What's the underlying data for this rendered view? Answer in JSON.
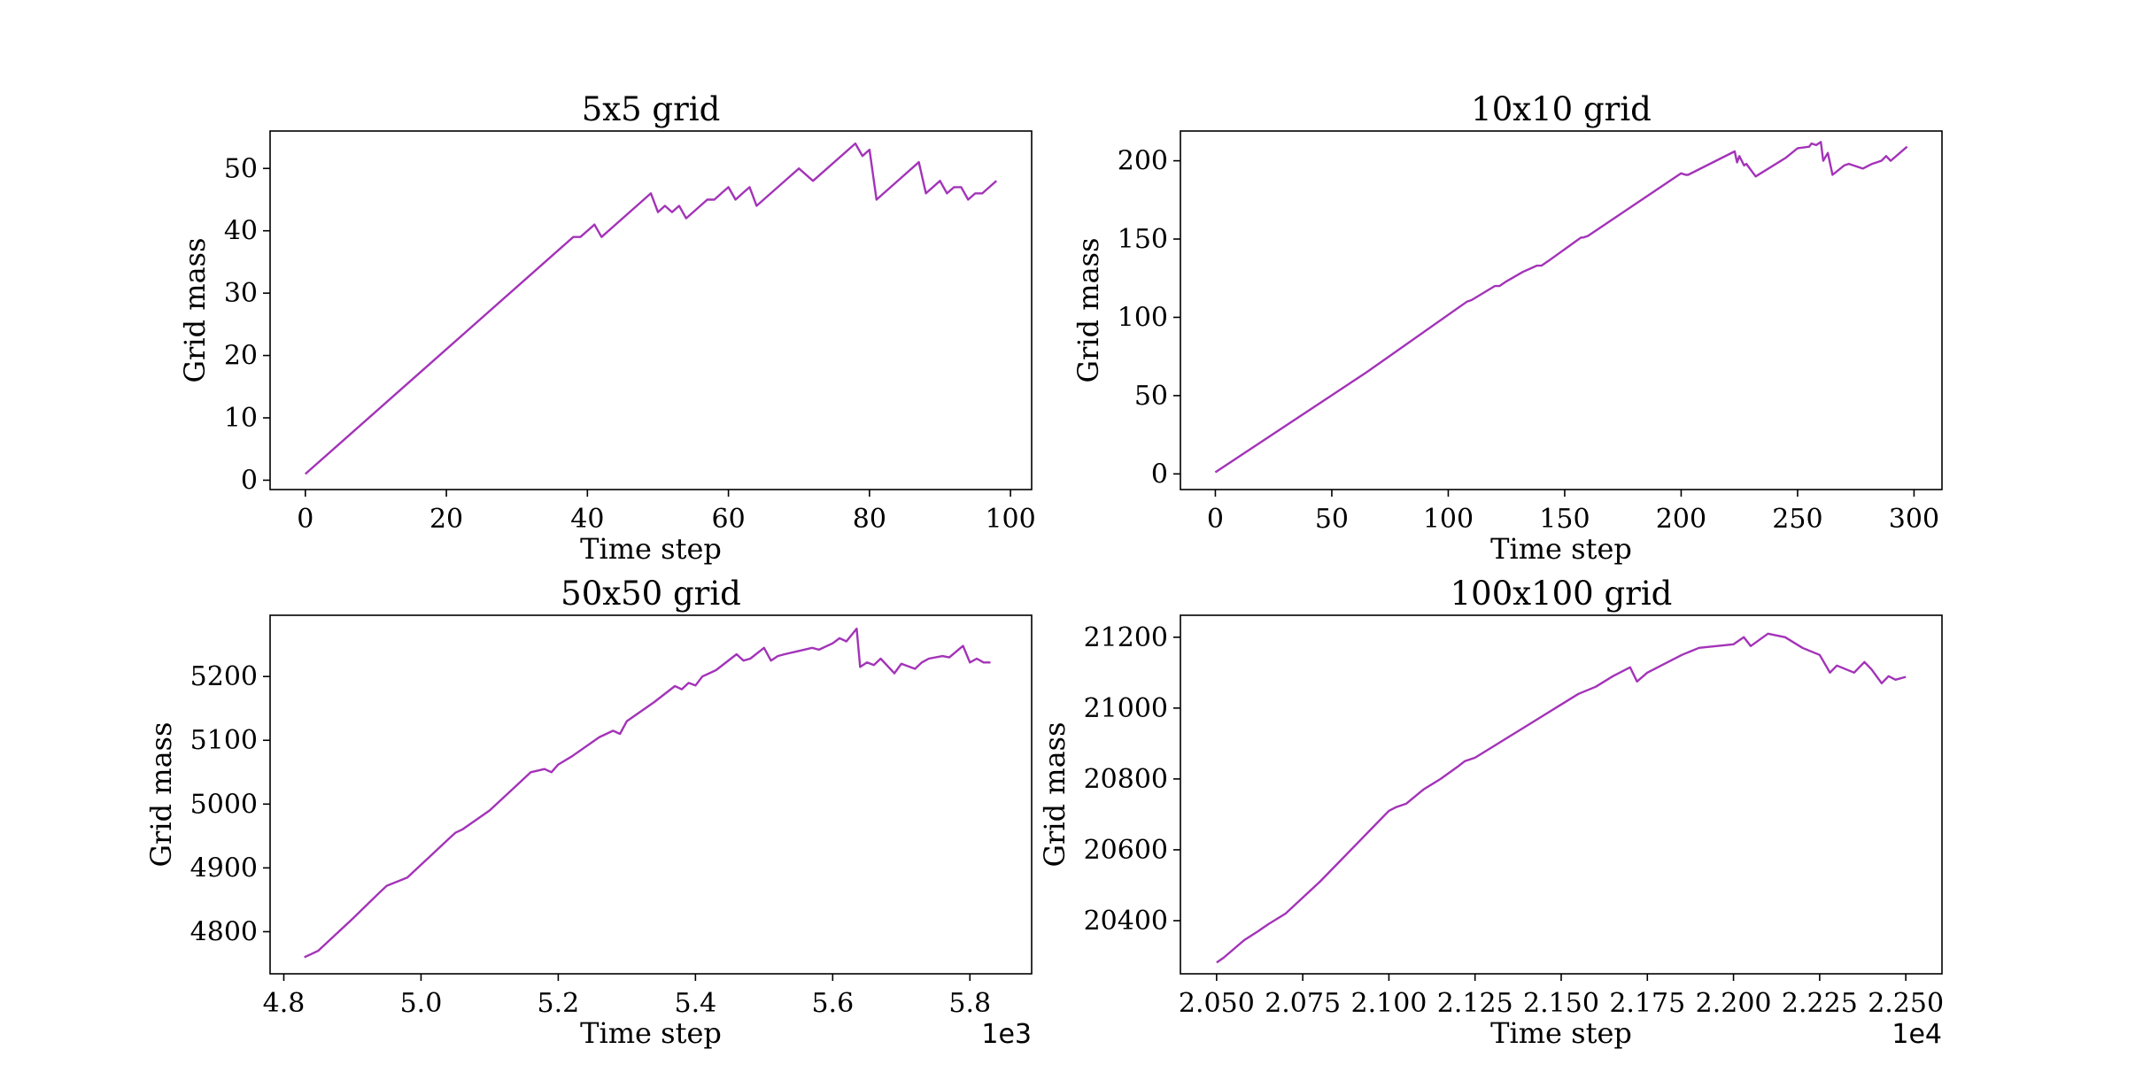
{
  "chart_data": [
    {
      "type": "line",
      "title": "5x5 grid",
      "xlabel": "Time step",
      "ylabel": "Grid mass",
      "xlim": [
        -5,
        103
      ],
      "ylim": [
        -1.5,
        56
      ],
      "xticks": [
        0,
        20,
        40,
        60,
        80,
        100
      ],
      "xtick_labels": [
        "0",
        "20",
        "40",
        "60",
        "80",
        "100"
      ],
      "yticks": [
        0,
        10,
        20,
        30,
        40,
        50
      ],
      "ytick_labels": [
        "0",
        "10",
        "20",
        "30",
        "40",
        "50"
      ],
      "x_offset_label": "",
      "color": "#a333b8",
      "series": [
        {
          "name": "Grid mass",
          "x": [
            0,
            38,
            39,
            41,
            42,
            49,
            50,
            51,
            52,
            53,
            54,
            55,
            57,
            58,
            59,
            60,
            61,
            62,
            63,
            64,
            70,
            72,
            78,
            79,
            80,
            81,
            87,
            88,
            90,
            91,
            92,
            93,
            94,
            95,
            96,
            97,
            98
          ],
          "y": [
            1,
            39,
            39,
            41,
            39,
            46,
            43,
            44,
            43,
            44,
            42,
            43,
            45,
            45,
            46,
            47,
            45,
            46,
            47,
            44,
            50,
            48,
            54,
            52,
            53,
            45,
            51,
            46,
            48,
            46,
            47,
            47,
            45,
            46,
            46,
            47,
            48
          ]
        }
      ]
    },
    {
      "type": "line",
      "title": "10x10 grid",
      "xlabel": "Time step",
      "ylabel": "Grid mass",
      "xlim": [
        -15,
        312
      ],
      "ylim": [
        -10,
        219
      ],
      "xticks": [
        0,
        50,
        100,
        150,
        200,
        250,
        300
      ],
      "xtick_labels": [
        "0",
        "50",
        "100",
        "150",
        "200",
        "250",
        "300"
      ],
      "yticks": [
        0,
        50,
        100,
        150,
        200
      ],
      "ytick_labels": [
        "0",
        "50",
        "100",
        "150",
        "200"
      ],
      "x_offset_label": "",
      "color": "#a333b8",
      "series": [
        {
          "name": "Grid mass",
          "x": [
            0,
            64,
            65,
            108,
            110,
            120,
            122,
            125,
            132,
            138,
            140,
            143,
            157,
            158,
            160,
            200,
            202,
            203,
            223,
            224,
            225,
            227,
            228,
            232,
            245,
            250,
            255,
            256,
            258,
            260,
            261,
            263,
            265,
            270,
            272,
            278,
            282,
            286,
            288,
            290,
            297
          ],
          "y": [
            1,
            64,
            65,
            110,
            111,
            120,
            120,
            123,
            129,
            133,
            133,
            136,
            151,
            151,
            152,
            192,
            191,
            191,
            206,
            199,
            203,
            197,
            198,
            190,
            202,
            208,
            209,
            211,
            210,
            212,
            200,
            205,
            191,
            197,
            198,
            195,
            198,
            200,
            203,
            200,
            209
          ]
        }
      ]
    },
    {
      "type": "line",
      "title": "50x50 grid",
      "xlabel": "Time step",
      "ylabel": "Grid mass",
      "xlim": [
        4.78,
        5.89
      ],
      "ylim": [
        4734,
        5296
      ],
      "xticks": [
        4.8,
        5.0,
        5.2,
        5.4,
        5.6,
        5.8
      ],
      "xtick_labels": [
        "4.8",
        "5.0",
        "5.2",
        "5.4",
        "5.6",
        "5.8"
      ],
      "yticks": [
        4800,
        4900,
        5000,
        5100,
        5200
      ],
      "ytick_labels": [
        "4800",
        "4900",
        "5000",
        "5100",
        "5200"
      ],
      "x_offset_label": "1e3",
      "color": "#a333b8",
      "series": [
        {
          "name": "Grid mass",
          "x": [
            4.83,
            4.84,
            4.85,
            4.9,
            4.94,
            4.95,
            4.98,
            5.0,
            5.01,
            5.04,
            5.05,
            5.06,
            5.1,
            5.13,
            5.16,
            5.18,
            5.19,
            5.2,
            5.22,
            5.26,
            5.28,
            5.29,
            5.3,
            5.34,
            5.37,
            5.38,
            5.39,
            5.4,
            5.41,
            5.43,
            5.46,
            5.47,
            5.48,
            5.5,
            5.51,
            5.52,
            5.53,
            5.55,
            5.57,
            5.58,
            5.6,
            5.61,
            5.62,
            5.635,
            5.64,
            5.65,
            5.66,
            5.67,
            5.69,
            5.7,
            5.72,
            5.73,
            5.74,
            5.76,
            5.77,
            5.79,
            5.8,
            5.81,
            5.82,
            5.83
          ],
          "y": [
            4760,
            4765,
            4770,
            4820,
            4862,
            4872,
            4885,
            4905,
            4915,
            4945,
            4955,
            4960,
            4990,
            5020,
            5050,
            5055,
            5050,
            5062,
            5075,
            5105,
            5115,
            5110,
            5130,
            5160,
            5185,
            5180,
            5190,
            5186,
            5200,
            5210,
            5235,
            5225,
            5228,
            5245,
            5225,
            5232,
            5235,
            5240,
            5245,
            5242,
            5252,
            5260,
            5255,
            5275,
            5215,
            5222,
            5218,
            5228,
            5205,
            5220,
            5212,
            5222,
            5228,
            5232,
            5230,
            5248,
            5222,
            5228,
            5222,
            5222
          ]
        }
      ]
    },
    {
      "type": "line",
      "title": "100x100 grid",
      "xlabel": "Time step",
      "ylabel": "Grid mass",
      "xlim": [
        2.0395,
        2.2605
      ],
      "ylim": [
        20250,
        21262
      ],
      "xticks": [
        2.05,
        2.075,
        2.1,
        2.125,
        2.15,
        2.175,
        2.2,
        2.225,
        2.25
      ],
      "xtick_labels": [
        "2.050",
        "2.075",
        "2.100",
        "2.125",
        "2.150",
        "2.175",
        "2.200",
        "2.225",
        "2.250"
      ],
      "yticks": [
        20400,
        20600,
        20800,
        21000,
        21200
      ],
      "ytick_labels": [
        "20400",
        "20600",
        "20800",
        "21000",
        "21200"
      ],
      "x_offset_label": "1e4",
      "color": "#a333b8",
      "series": [
        {
          "name": "Grid mass",
          "x": [
            2.05,
            2.052,
            2.055,
            2.058,
            2.062,
            2.065,
            2.07,
            2.075,
            2.08,
            2.085,
            2.09,
            2.095,
            2.1,
            2.102,
            2.105,
            2.11,
            2.115,
            2.12,
            2.122,
            2.125,
            2.13,
            2.135,
            2.14,
            2.145,
            2.15,
            2.155,
            2.16,
            2.165,
            2.17,
            2.172,
            2.175,
            2.18,
            2.185,
            2.19,
            2.195,
            2.2,
            2.203,
            2.205,
            2.21,
            2.215,
            2.22,
            2.225,
            2.228,
            2.23,
            2.235,
            2.238,
            2.24,
            2.243,
            2.245,
            2.247,
            2.25
          ],
          "y": [
            20282,
            20295,
            20320,
            20345,
            20370,
            20390,
            20420,
            20465,
            20510,
            20560,
            20610,
            20660,
            20710,
            20720,
            20730,
            20770,
            20800,
            20835,
            20850,
            20860,
            20890,
            20920,
            20950,
            20980,
            21010,
            21040,
            21060,
            21090,
            21115,
            21075,
            21100,
            21125,
            21150,
            21170,
            21175,
            21180,
            21200,
            21175,
            21210,
            21200,
            21170,
            21150,
            21100,
            21120,
            21100,
            21130,
            21110,
            21070,
            21090,
            21080,
            21088
          ]
        }
      ]
    }
  ]
}
